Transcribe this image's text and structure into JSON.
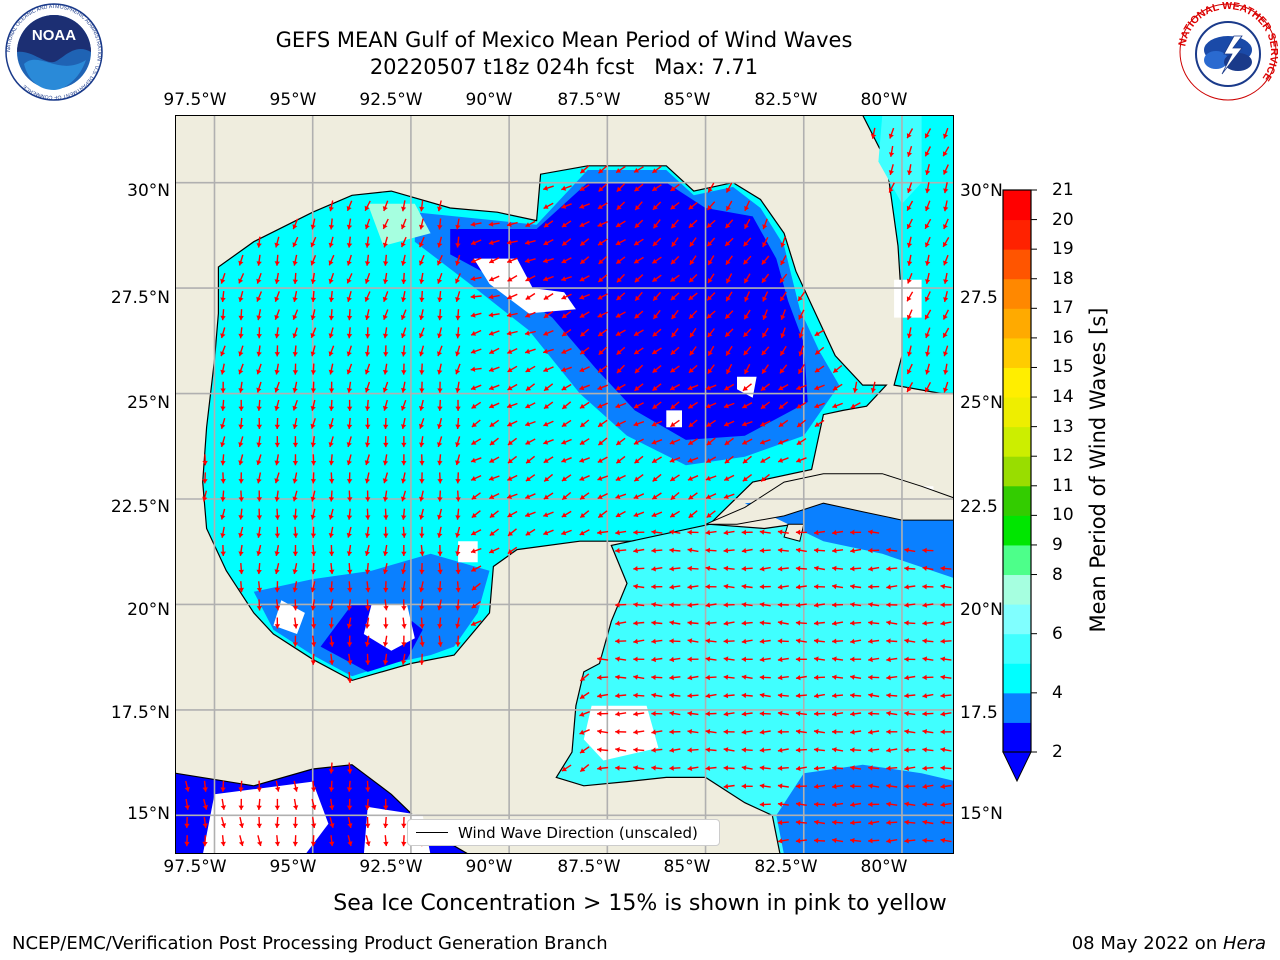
{
  "title": {
    "line1": "GEFS MEAN Gulf of Mexico Mean Period of Wind Waves",
    "line2": "20220507 t18z 024h fcst   Max: 7.71"
  },
  "logos": {
    "noaa": {
      "text": "NOAA",
      "ring_text": "NATIONAL OCEANIC AND ATMOSPHERIC ADMINISTRATION · U.S. DEPARTMENT OF COMMERCE"
    },
    "nws": {
      "ring_text": "NATIONAL WEATHER SERVICE"
    }
  },
  "map": {
    "lon_ticks": [
      "97.5°W",
      "95°W",
      "92.5°W",
      "90°W",
      "87.5°W",
      "85°W",
      "82.5°W",
      "80°W"
    ],
    "lat_ticks_left": [
      "30°N",
      "27.5°N",
      "25°N",
      "22.5°N",
      "20°N",
      "17.5°N",
      "15°N"
    ],
    "lat_ticks_right": [
      "30°N",
      "27.5",
      "25°N",
      "22.5",
      "20°N",
      "17.5",
      "15°N"
    ],
    "legend_label": "Wind Wave Direction (unscaled)",
    "land_color": "#efedde",
    "coast_color": "#000000",
    "grid_color": "#b0b0b0",
    "arrow_color": "#ff0000"
  },
  "colorbar": {
    "label": "Mean Period of Wind Waves [s]",
    "tick_labels": [
      "2",
      "4",
      "6",
      "8",
      "9",
      "10",
      "11",
      "12",
      "13",
      "14",
      "15",
      "16",
      "17",
      "18",
      "19",
      "20",
      "21"
    ],
    "colors": [
      "#0000ff",
      "#0a80ff",
      "#00ffff",
      "#40ffff",
      "#80ffff",
      "#a6ffe0",
      "#4dff8a",
      "#00e600",
      "#33cc00",
      "#99dd00",
      "#ccee00",
      "#eeee00",
      "#ffee00",
      "#ffcc00",
      "#ffaa00",
      "#ff8800",
      "#ff5500",
      "#ff2200",
      "#ff0000"
    ]
  },
  "notes": {
    "sea_ice": "Sea Ice Concentration > 15% is shown in pink to yellow",
    "left": "NCEP/EMC/Verification Post Processing Product Generation Branch",
    "date": "08 May 2022 on ",
    "machine": "Hera"
  }
}
